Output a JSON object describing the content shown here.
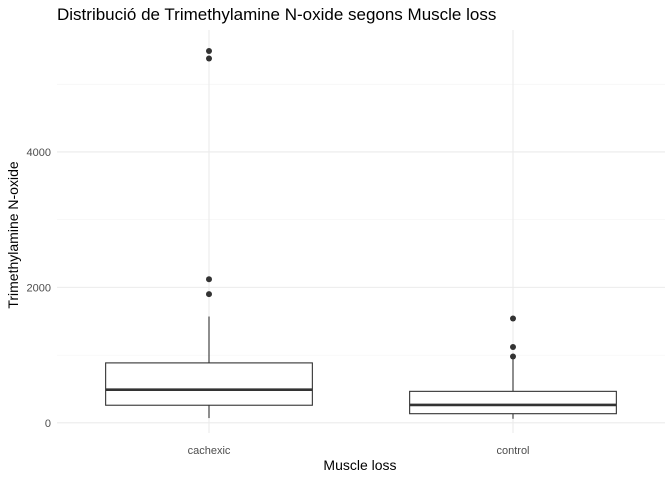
{
  "chart_data": {
    "type": "boxplot",
    "title": "Distribució de Trimethylamine N-oxide segons Muscle loss",
    "xlabel": "Muscle loss",
    "ylabel": "Trimethylamine N-oxide",
    "categories": [
      "cachexic",
      "control"
    ],
    "ylim": [
      -150,
      5800
    ],
    "yticks": [
      0,
      2000,
      4000
    ],
    "yticks_minor": [
      1000,
      3000,
      5000
    ],
    "grid": true,
    "boxes": [
      {
        "category": "cachexic",
        "whisker_low": 70,
        "q1": 260,
        "median": 490,
        "q3": 885,
        "whisker_high": 1570,
        "outliers": [
          1900,
          2120,
          5380,
          5490
        ]
      },
      {
        "category": "control",
        "whisker_low": 60,
        "q1": 135,
        "median": 265,
        "q3": 465,
        "whisker_high": 940,
        "outliers": [
          980,
          1120,
          1540
        ]
      }
    ],
    "colors": {
      "box_stroke": "#333333",
      "box_fill": "#ffffff",
      "grid": "#ebebeb",
      "text": "#000000",
      "tick": "#4d4d4d"
    }
  }
}
